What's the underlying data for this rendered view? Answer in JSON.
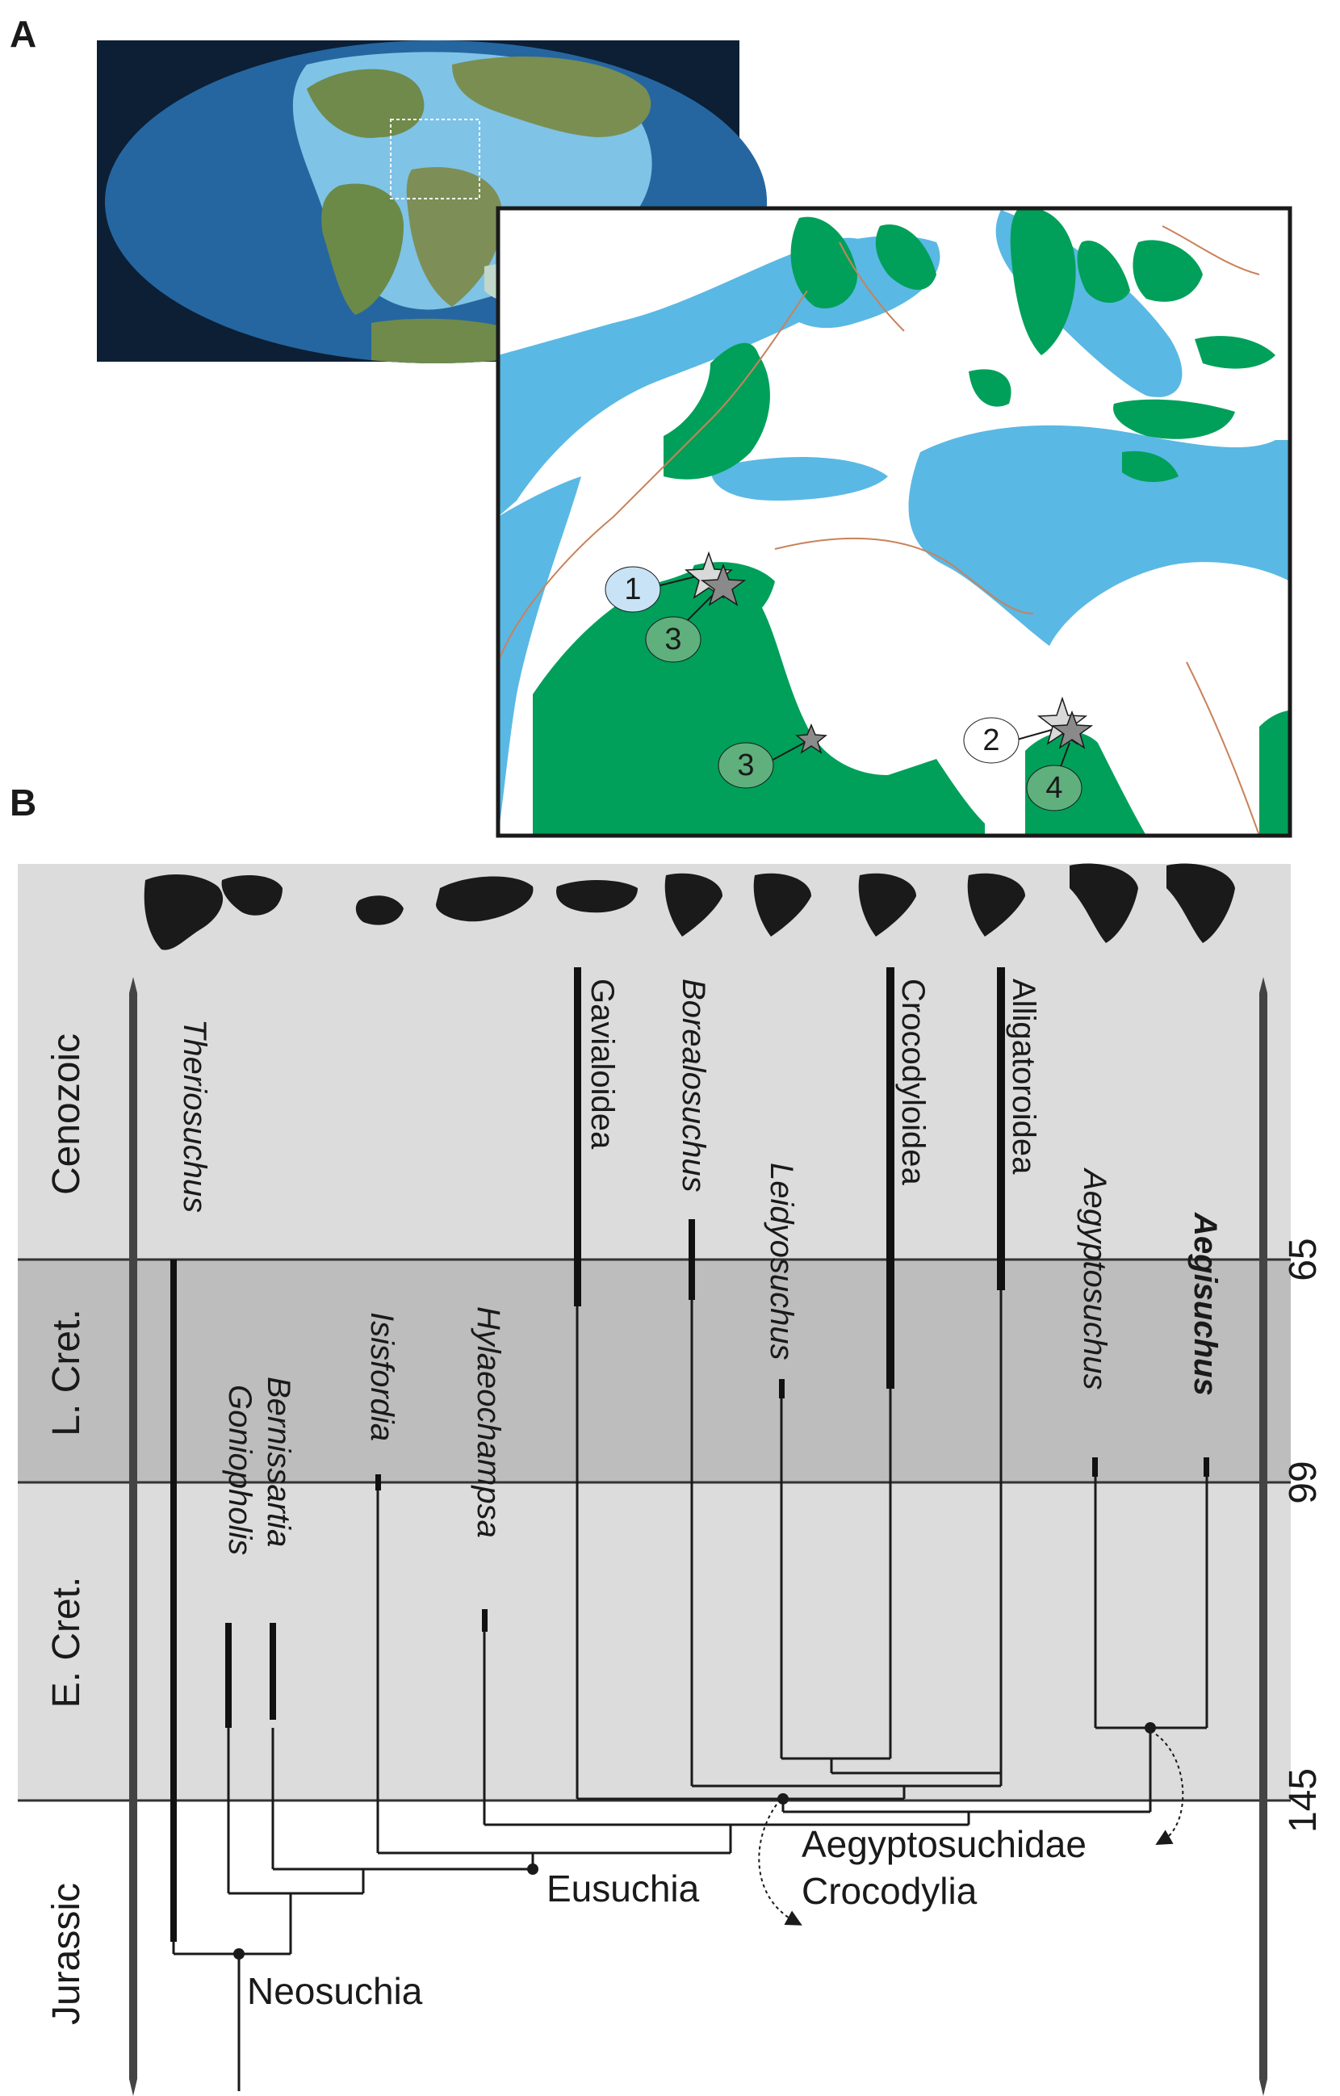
{
  "panels": {
    "a": {
      "label": "A"
    },
    "b": {
      "label": "B"
    }
  },
  "map": {
    "localities": [
      {
        "number": "1",
        "fill": "#c7e3f5"
      },
      {
        "number": "3",
        "fill": "#5fb07c"
      },
      {
        "number": "3",
        "fill": "#5fb07c"
      },
      {
        "number": "2",
        "fill": "#ffffff"
      },
      {
        "number": "4",
        "fill": "#5fb07c"
      }
    ]
  },
  "timescale": {
    "eras": [
      {
        "name": "Cenozoic",
        "fill": "#dcdcdc"
      },
      {
        "name": "L. Cret.",
        "fill": "#bdbdbd"
      },
      {
        "name": "E. Cret.",
        "fill": "#dcdcdc"
      },
      {
        "name": "Jurassic",
        "fill": "#ffffff"
      }
    ],
    "ages": [
      "65",
      "99",
      "145"
    ]
  },
  "taxa": [
    {
      "name": "Theriosuchus",
      "style": "italic"
    },
    {
      "name": "Bernissartia",
      "style": "italic"
    },
    {
      "name": "Goniopholis",
      "style": "italic"
    },
    {
      "name": "Isisfordia",
      "style": "italic"
    },
    {
      "name": "Hylaeochampsa",
      "style": "italic"
    },
    {
      "name": "Gavialoidea",
      "style": "normal"
    },
    {
      "name": "Borealosuchus",
      "style": "italic"
    },
    {
      "name": "Leidyosuchus",
      "style": "italic"
    },
    {
      "name": "Crocodyloidea",
      "style": "normal"
    },
    {
      "name": "Alligatoroidea",
      "style": "normal"
    },
    {
      "name": "Aegyptosuchus",
      "style": "italic"
    },
    {
      "name": "Aegisuchus",
      "style": "bold-italic"
    }
  ],
  "clades": {
    "neosuchia": "Neosuchia",
    "eusuchia": "Eusuchia",
    "aegyptosuchidae": "Aegyptosuchidae",
    "crocodylia": "Crocodylia"
  },
  "colors": {
    "land": "#00a05a",
    "sea": "#5ab8e4",
    "rivers": "#c8825a",
    "star": "#8a8a8a"
  }
}
